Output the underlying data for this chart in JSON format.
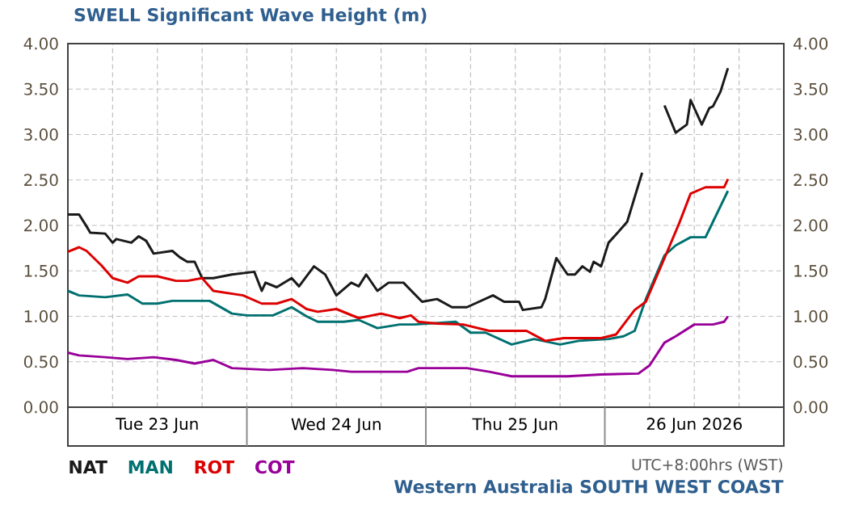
{
  "chart_data": {
    "type": "line",
    "title": "SWELL Significant Wave Height (m)",
    "annotations": [
      "UTC+8:00hrs (WST)",
      "Western Australia SOUTH WEST COAST"
    ],
    "xlim": [
      "2026-06-23T00:00",
      "2026-06-27T00:00"
    ],
    "xticks": [
      {
        "value": "2026-06-23T00:00",
        "label": null
      },
      {
        "value": "2026-06-23T06:00",
        "label": null
      },
      {
        "value": "2026-06-23T12:00",
        "label": "Tue 23 Jun"
      },
      {
        "value": "2026-06-23T18:00",
        "label": null
      },
      {
        "value": "2026-06-24T00:00",
        "label": null
      },
      {
        "value": "2026-06-24T06:00",
        "label": null
      },
      {
        "value": "2026-06-24T12:00",
        "label": "Wed 24 Jun"
      },
      {
        "value": "2026-06-24T18:00",
        "label": null
      },
      {
        "value": "2026-06-25T00:00",
        "label": null
      },
      {
        "value": "2026-06-25T06:00",
        "label": null
      },
      {
        "value": "2026-06-25T12:00",
        "label": "Thu 25 Jun"
      },
      {
        "value": "2026-06-25T18:00",
        "label": null
      },
      {
        "value": "2026-06-26T00:00",
        "label": null
      },
      {
        "value": "2026-06-26T06:00",
        "label": null
      },
      {
        "value": "2026-06-26T12:00",
        "label": "26 Jun 2026"
      },
      {
        "value": "2026-06-26T18:00",
        "label": null
      },
      {
        "value": "2026-06-27T00:00",
        "label": null
      }
    ],
    "ylim": [
      0,
      4
    ],
    "yticks": [
      {
        "value": 0,
        "label": "0.00"
      },
      {
        "value": 0.5,
        "label": "0.50"
      },
      {
        "value": 1,
        "label": "1.00"
      },
      {
        "value": 1.5,
        "label": "1.50"
      },
      {
        "value": 2,
        "label": "2.00"
      },
      {
        "value": 2.5,
        "label": "2.50"
      },
      {
        "value": 3,
        "label": "3.00"
      },
      {
        "value": 3.5,
        "label": "3.50"
      },
      {
        "value": 4,
        "label": "4.00"
      }
    ],
    "y2lim": [
      0,
      4
    ],
    "y2ticks": [
      {
        "value": 0,
        "label": "0.00"
      },
      {
        "value": 0.5,
        "label": "0.50"
      },
      {
        "value": 1,
        "label": "1.00"
      },
      {
        "value": 1.5,
        "label": "1.50"
      },
      {
        "value": 2,
        "label": "2.00"
      },
      {
        "value": 2.5,
        "label": "2.50"
      },
      {
        "value": 3,
        "label": "3.00"
      },
      {
        "value": 3.5,
        "label": "3.50"
      },
      {
        "value": 4,
        "label": "4.00"
      }
    ],
    "grid": true,
    "legend": "bottom left",
    "series": [
      {
        "name": "NAT",
        "color": "#1a1a1a",
        "x": [
          "2026-06-23T00:00",
          "2026-06-23T01:30",
          "2026-06-23T02:30",
          "2026-06-23T03:00",
          "2026-06-23T05:00",
          "2026-06-23T06:00",
          "2026-06-23T06:30",
          "2026-06-23T08:30",
          "2026-06-23T09:30",
          "2026-06-23T10:30",
          "2026-06-23T11:30",
          "2026-06-23T14:00",
          "2026-06-23T15:00",
          "2026-06-23T16:00",
          "2026-06-23T17:00",
          "2026-06-23T18:00",
          "2026-06-23T19:30",
          "2026-06-23T22:00",
          "2026-06-24T01:00",
          "2026-06-24T02:00",
          "2026-06-24T02:30",
          "2026-06-24T04:00",
          "2026-06-24T06:00",
          "2026-06-24T07:00",
          "2026-06-24T09:00",
          "2026-06-24T10:30",
          "2026-06-24T12:00",
          "2026-06-24T14:00",
          "2026-06-24T15:00",
          "2026-06-24T16:00",
          "2026-06-24T17:30",
          "2026-06-24T19:00",
          "2026-06-24T21:00",
          "2026-06-24T23:30",
          "2026-06-25T01:30",
          "2026-06-25T03:30",
          "2026-06-25T05:30",
          "2026-06-25T09:00",
          "2026-06-25T10:30",
          "2026-06-25T12:30",
          "2026-06-25T13:00",
          "2026-06-25T15:30",
          "2026-06-25T16:00",
          "2026-06-25T17:30",
          "2026-06-25T19:00",
          "2026-06-25T20:00",
          "2026-06-25T21:00",
          "2026-06-25T22:00",
          "2026-06-25T22:30",
          "2026-06-25T23:30",
          "2026-06-26T00:30",
          "2026-06-26T01:30",
          "2026-06-26T03:00",
          "2026-06-26T05:00",
          "2026-06-26T06:30",
          "2026-06-26T08:00",
          "2026-06-26T09:30",
          "2026-06-26T11:00",
          "2026-06-26T11:30",
          "2026-06-26T13:00",
          "2026-06-26T14:00",
          "2026-06-26T14:30",
          "2026-06-26T15:30",
          "2026-06-26T16:30"
        ],
        "values": [
          2.12,
          2.12,
          1.99,
          1.92,
          1.91,
          1.81,
          1.85,
          1.81,
          1.88,
          1.83,
          1.69,
          1.72,
          1.65,
          1.6,
          1.6,
          1.42,
          1.42,
          1.46,
          1.49,
          1.28,
          1.37,
          1.32,
          1.42,
          1.33,
          1.55,
          1.46,
          1.23,
          1.37,
          1.33,
          1.46,
          1.28,
          1.37,
          1.37,
          1.16,
          1.19,
          1.1,
          1.1,
          1.23,
          1.16,
          1.16,
          1.07,
          1.1,
          1.19,
          1.64,
          1.46,
          1.46,
          1.55,
          1.49,
          1.6,
          1.55,
          1.81,
          1.9,
          2.04,
          2.58,
          null,
          3.32,
          3.02,
          3.11,
          3.38,
          3.11,
          3.29,
          3.31,
          3.47,
          3.73
        ]
      },
      {
        "name": "MAN",
        "color": "#007070",
        "x": [
          "2026-06-23T00:00",
          "2026-06-23T01:30",
          "2026-06-23T05:00",
          "2026-06-23T08:00",
          "2026-06-23T10:00",
          "2026-06-23T12:00",
          "2026-06-23T14:00",
          "2026-06-23T19:00",
          "2026-06-23T20:30",
          "2026-06-23T22:00",
          "2026-06-24T00:00",
          "2026-06-24T03:30",
          "2026-06-24T06:00",
          "2026-06-24T08:00",
          "2026-06-24T09:30",
          "2026-06-24T13:00",
          "2026-06-24T15:00",
          "2026-06-24T17:30",
          "2026-06-24T20:30",
          "2026-06-24T22:30",
          "2026-06-25T04:00",
          "2026-06-25T06:00",
          "2026-06-25T08:00",
          "2026-06-25T11:30",
          "2026-06-25T14:30",
          "2026-06-25T18:00",
          "2026-06-25T20:30",
          "2026-06-26T00:30",
          "2026-06-26T02:30",
          "2026-06-26T04:00",
          "2026-06-26T05:30",
          "2026-06-26T08:00",
          "2026-06-26T09:30",
          "2026-06-26T11:30",
          "2026-06-26T13:30",
          "2026-06-26T14:30",
          "2026-06-26T16:30"
        ],
        "values": [
          1.28,
          1.23,
          1.21,
          1.24,
          1.14,
          1.14,
          1.17,
          1.17,
          1.1,
          1.03,
          1.01,
          1.01,
          1.1,
          1.0,
          0.94,
          0.94,
          0.96,
          0.87,
          0.91,
          0.91,
          0.94,
          0.82,
          0.82,
          0.69,
          0.75,
          0.69,
          0.73,
          0.75,
          0.78,
          0.84,
          1.19,
          1.67,
          1.78,
          1.87,
          1.87,
          2.04,
          2.38
        ]
      },
      {
        "name": "ROT",
        "color": "#dd0000",
        "x": [
          "2026-06-23T00:00",
          "2026-06-23T01:30",
          "2026-06-23T02:30",
          "2026-06-23T04:30",
          "2026-06-23T06:00",
          "2026-06-23T08:00",
          "2026-06-23T09:30",
          "2026-06-23T12:00",
          "2026-06-23T14:30",
          "2026-06-23T16:00",
          "2026-06-23T18:00",
          "2026-06-23T19:30",
          "2026-06-23T23:30",
          "2026-06-24T02:00",
          "2026-06-24T04:00",
          "2026-06-24T06:00",
          "2026-06-24T08:00",
          "2026-06-24T09:30",
          "2026-06-24T12:00",
          "2026-06-24T15:00",
          "2026-06-24T18:00",
          "2026-06-24T20:30",
          "2026-06-24T22:00",
          "2026-06-24T23:00",
          "2026-06-25T01:30",
          "2026-06-25T05:00",
          "2026-06-25T08:30",
          "2026-06-25T13:30",
          "2026-06-25T16:00",
          "2026-06-25T18:30",
          "2026-06-25T23:30",
          "2026-06-26T01:30",
          "2026-06-26T04:00",
          "2026-06-26T05:30",
          "2026-06-26T08:00",
          "2026-06-26T10:00",
          "2026-06-26T11:30",
          "2026-06-26T13:30",
          "2026-06-26T16:00",
          "2026-06-26T16:30"
        ],
        "values": [
          1.71,
          1.76,
          1.72,
          1.56,
          1.42,
          1.37,
          1.44,
          1.44,
          1.39,
          1.39,
          1.42,
          1.28,
          1.23,
          1.14,
          1.14,
          1.19,
          1.08,
          1.05,
          1.08,
          0.98,
          1.03,
          0.98,
          1.01,
          0.94,
          0.92,
          0.91,
          0.84,
          0.84,
          0.73,
          0.76,
          0.76,
          0.8,
          1.07,
          1.16,
          1.64,
          2.03,
          2.35,
          2.42,
          2.42,
          2.51
        ]
      },
      {
        "name": "COT",
        "color": "#990099",
        "x": [
          "2026-06-23T00:00",
          "2026-06-23T01:30",
          "2026-06-23T05:00",
          "2026-06-23T08:00",
          "2026-06-23T11:30",
          "2026-06-23T14:30",
          "2026-06-23T17:00",
          "2026-06-23T19:30",
          "2026-06-23T22:00",
          "2026-06-24T03:00",
          "2026-06-24T07:30",
          "2026-06-24T11:30",
          "2026-06-24T14:00",
          "2026-06-24T21:30",
          "2026-06-24T23:00",
          "2026-06-25T05:30",
          "2026-06-25T08:30",
          "2026-06-25T11:30",
          "2026-06-25T19:00",
          "2026-06-25T23:30",
          "2026-06-26T04:30",
          "2026-06-26T06:00",
          "2026-06-26T08:00",
          "2026-06-26T09:30",
          "2026-06-26T12:00",
          "2026-06-26T14:30",
          "2026-06-26T16:00",
          "2026-06-26T16:30"
        ],
        "values": [
          0.6,
          0.57,
          0.55,
          0.53,
          0.55,
          0.52,
          0.48,
          0.52,
          0.43,
          0.41,
          0.43,
          0.41,
          0.39,
          0.39,
          0.43,
          0.43,
          0.39,
          0.34,
          0.34,
          0.36,
          0.37,
          0.46,
          0.71,
          0.78,
          0.91,
          0.91,
          0.94,
          1.0
        ]
      }
    ]
  }
}
